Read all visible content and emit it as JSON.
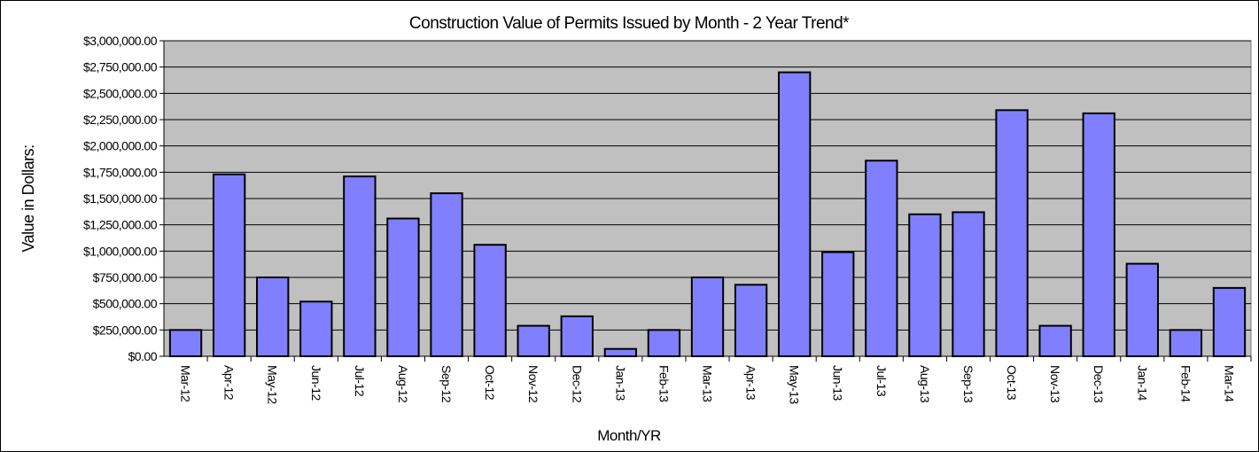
{
  "chart_data": {
    "type": "bar",
    "title": "Construction Value of Permits Issued by Month - 2 Year Trend*",
    "y_label": "Value in Dollars:",
    "x_label": "Month/YR",
    "categories": [
      "Mar-12",
      "Apr-12",
      "May-12",
      "Jun-12",
      "Jul-12",
      "Aug-12",
      "Sep-12",
      "Oct-12",
      "Nov-12",
      "Dec-12",
      "Jan-13",
      "Feb-13",
      "Mar-13",
      "Apr-13",
      "May-13",
      "Jun-13",
      "Jul-13",
      "Aug-13",
      "Sep-13",
      "Oct-13",
      "Nov-13",
      "Dec-13",
      "Jan-14",
      "Feb-14",
      "Mar-14"
    ],
    "values": [
      250000,
      1730000,
      750000,
      520000,
      1710000,
      1310000,
      1550000,
      1060000,
      290000,
      380000,
      70000,
      250000,
      750000,
      680000,
      2700000,
      990000,
      1860000,
      1350000,
      1370000,
      2340000,
      290000,
      2310000,
      880000,
      250000,
      650000
    ],
    "color": "#8080ff",
    "ylim": [
      0,
      3000000
    ],
    "yticks": [
      {
        "value": 0,
        "label": "$0.00"
      },
      {
        "value": 250000,
        "label": "$250,000.00"
      },
      {
        "value": 500000,
        "label": "$500,000.00"
      },
      {
        "value": 750000,
        "label": "$750,000.00"
      },
      {
        "value": 1000000,
        "label": "$1,000,000.00"
      },
      {
        "value": 1250000,
        "label": "$1,250,000.00"
      },
      {
        "value": 1500000,
        "label": "$1,500,000.00"
      },
      {
        "value": 1750000,
        "label": "$1,750,000.00"
      },
      {
        "value": 2000000,
        "label": "$2,000,000.00"
      },
      {
        "value": 2250000,
        "label": "$2,250,000.00"
      },
      {
        "value": 2500000,
        "label": "$2,500,000.00"
      },
      {
        "value": 2750000,
        "label": "$2,750,000.00"
      },
      {
        "value": 3000000,
        "label": "$3,000,000.00"
      }
    ],
    "grid": true
  }
}
